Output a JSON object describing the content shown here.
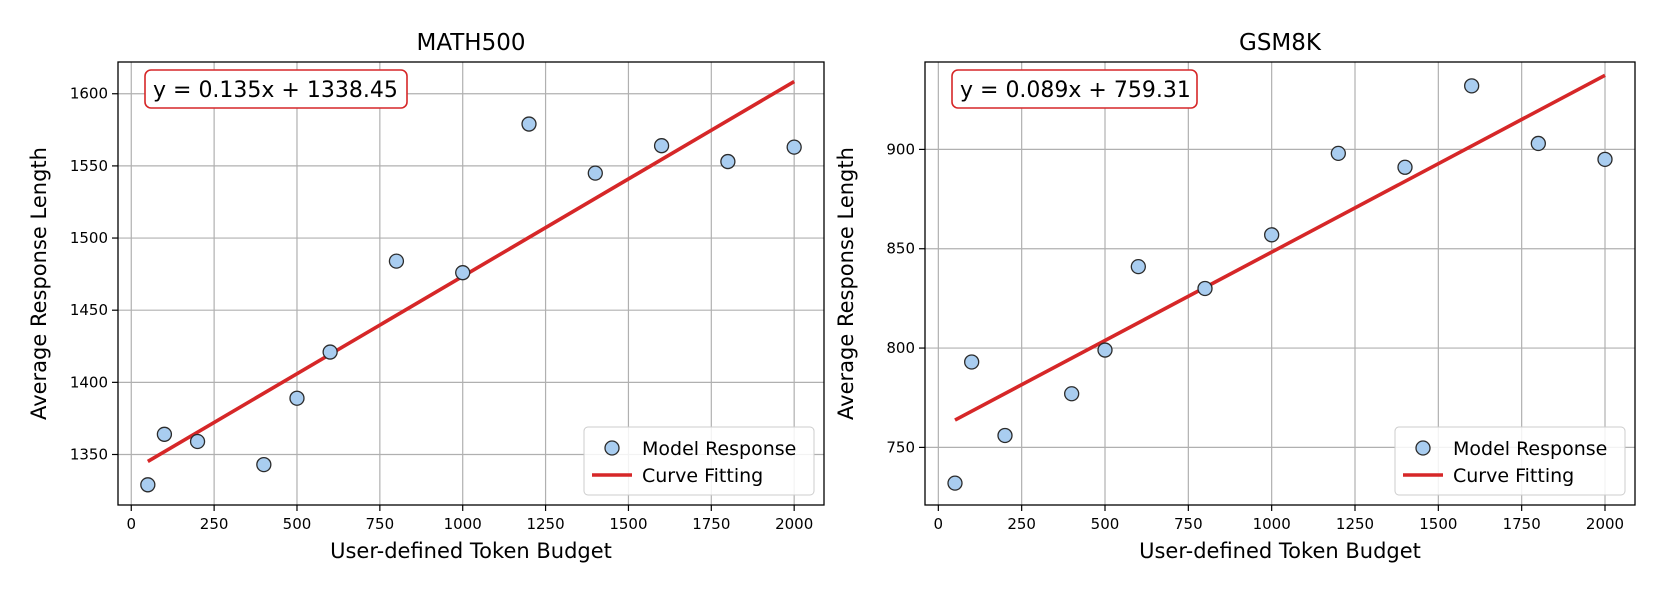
{
  "chart_data": [
    {
      "type": "scatter",
      "title": "MATH500",
      "xlabel": "User-defined Token Budget",
      "ylabel": "Average Response Length",
      "xlim": [
        -40,
        2090
      ],
      "ylim": [
        1315,
        1622
      ],
      "xticks": [
        0,
        250,
        500,
        750,
        1000,
        1250,
        1500,
        1750,
        2000
      ],
      "yticks": [
        1350,
        1400,
        1450,
        1500,
        1550,
        1600
      ],
      "grid": true,
      "legend_position": "lower-right",
      "equation": "y = 0.135x + 1338.45",
      "fit": {
        "slope": 0.135,
        "intercept": 1338.45,
        "x_range": [
          50,
          2000
        ]
      },
      "series": [
        {
          "name": "Model Response",
          "x": [
            50,
            100,
            200,
            400,
            500,
            600,
            800,
            1000,
            1200,
            1400,
            1600,
            1800,
            2000
          ],
          "y": [
            1329,
            1364,
            1359,
            1343,
            1389,
            1421,
            1484,
            1476,
            1579,
            1545,
            1564,
            1553,
            1563
          ]
        },
        {
          "name": "Curve Fitting"
        }
      ]
    },
    {
      "type": "scatter",
      "title": "GSM8K",
      "xlabel": "User-defined Token Budget",
      "ylabel": "Average Response Length",
      "xlim": [
        -40,
        2090
      ],
      "ylim": [
        721,
        944
      ],
      "xticks": [
        0,
        250,
        500,
        750,
        1000,
        1250,
        1500,
        1750,
        2000
      ],
      "yticks": [
        750,
        800,
        850,
        900
      ],
      "grid": true,
      "legend_position": "lower-right",
      "equation": "y = 0.089x + 759.31",
      "fit": {
        "slope": 0.089,
        "intercept": 759.31,
        "x_range": [
          50,
          2000
        ]
      },
      "series": [
        {
          "name": "Model Response",
          "x": [
            50,
            100,
            200,
            400,
            500,
            600,
            800,
            1000,
            1200,
            1400,
            1600,
            1800,
            2000
          ],
          "y": [
            732,
            793,
            756,
            777,
            799,
            841,
            830,
            857,
            898,
            891,
            932,
            903,
            895
          ]
        },
        {
          "name": "Curve Fitting"
        }
      ]
    }
  ],
  "colors": {
    "marker_fill": "#a9cdf0",
    "marker_edge": "#2b2b2b",
    "fit_line": "#d62728",
    "equation_box_edge": "#d62728",
    "grid": "#b0b0b0",
    "axis": "#000000"
  }
}
